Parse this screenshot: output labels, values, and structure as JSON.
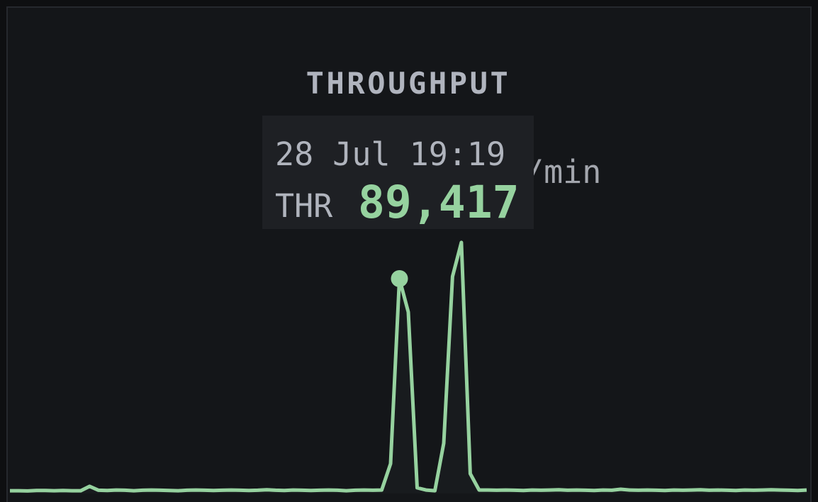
{
  "chart_data": {
    "type": "line",
    "title": "THROUGHPUT",
    "unit": "/min",
    "color": "#96d29f",
    "values": [
      2300,
      2300,
      2200,
      2400,
      2400,
      2300,
      2400,
      2300,
      2300,
      4100,
      2500,
      2400,
      2600,
      2500,
      2300,
      2500,
      2600,
      2500,
      2400,
      2300,
      2500,
      2600,
      2500,
      2400,
      2500,
      2600,
      2500,
      2400,
      2500,
      2700,
      2500,
      2400,
      2600,
      2500,
      2400,
      2500,
      2600,
      2500,
      2300,
      2500,
      2600,
      2500,
      2600,
      13400,
      89417,
      75700,
      3500,
      2600,
      2300,
      21800,
      90300,
      104300,
      9300,
      2600,
      2600,
      2500,
      2600,
      2500,
      2400,
      2600,
      2500,
      2600,
      2700,
      2500,
      2600,
      2500,
      2400,
      2600,
      2500,
      2900,
      2600,
      2500,
      2600,
      2500,
      2400,
      2600,
      2500,
      2600,
      2700,
      2500,
      2600,
      2500,
      2400,
      2600,
      2500,
      2600,
      2700,
      2600,
      2500,
      2400,
      2600
    ],
    "ylim": [
      0,
      105000
    ],
    "tooltip": {
      "time": "28 Jul 19:19",
      "series": "THR",
      "value": 89417,
      "value_label": "89,417"
    }
  }
}
